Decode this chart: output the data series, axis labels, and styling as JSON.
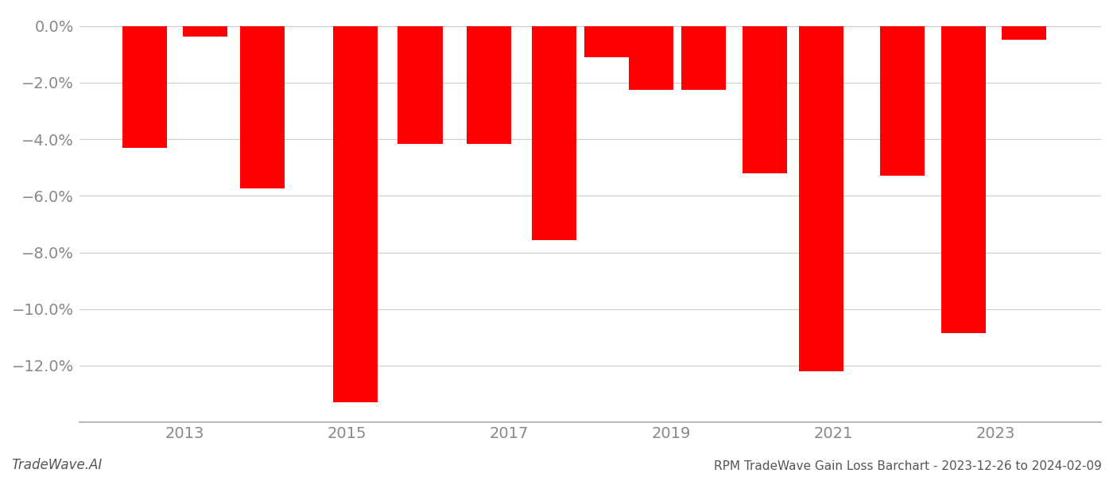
{
  "bars": [
    [
      2012.5,
      -4.3
    ],
    [
      2013.25,
      -0.38
    ],
    [
      2013.95,
      -5.75
    ],
    [
      2015.1,
      -13.3
    ],
    [
      2015.9,
      -4.15
    ],
    [
      2016.75,
      -4.15
    ],
    [
      2017.55,
      -7.55
    ],
    [
      2018.2,
      -1.1
    ],
    [
      2018.75,
      -2.25
    ],
    [
      2019.4,
      -2.25
    ],
    [
      2020.15,
      -5.2
    ],
    [
      2020.85,
      -12.2
    ],
    [
      2021.85,
      -5.3
    ],
    [
      2022.6,
      -10.85
    ],
    [
      2023.35,
      -0.48
    ]
  ],
  "bar_width": 0.55,
  "bar_color": "#ff0000",
  "xlim": [
    2011.7,
    2024.3
  ],
  "ylim": [
    -14.0,
    0.5
  ],
  "yticks": [
    0.0,
    -2.0,
    -4.0,
    -6.0,
    -8.0,
    -10.0,
    -12.0
  ],
  "xticks": [
    2013,
    2015,
    2017,
    2019,
    2021,
    2023
  ],
  "grid_color": "#cccccc",
  "bg_color": "#ffffff",
  "font_color": "#888888",
  "footer_left": "TradeWave.AI",
  "footer_right": "RPM TradeWave Gain Loss Barchart - 2023-12-26 to 2024-02-09",
  "minus_sign": "−"
}
